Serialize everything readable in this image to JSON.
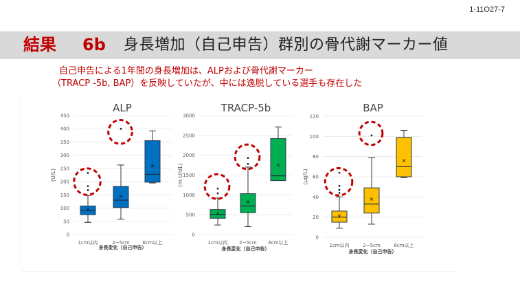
{
  "slide_id": "1-11O27-7",
  "header": {
    "result_label": "結果",
    "section_number": "6b",
    "title": "身長増加（自己申告）群別の骨代謝マーカー値"
  },
  "summary": {
    "line1": "自己申告による1年間の身長増加は、ALPおよび骨代謝マーカー",
    "line2": "（TRACP -5b, BAP）を反映していたが、中には逸脱している選手も存在した"
  },
  "colors": {
    "accent_red": "#c00000",
    "title_bar": "#d9d9d9",
    "alp": "#0070c0",
    "tracp": "#00b050",
    "bap": "#ffc000",
    "outlier_circle": "#c00000"
  },
  "chart_data": [
    {
      "type": "box",
      "title": "ALP",
      "xlabel": "身長変化（自己申告）",
      "ylabel": "(U/L)",
      "ylim": [
        0,
        450
      ],
      "yticks": [
        0,
        50,
        100,
        150,
        200,
        250,
        300,
        350,
        400,
        450
      ],
      "grid": true,
      "color": "#0070c0",
      "categories": [
        "1cm以内",
        "2~5cm",
        "6cm以上"
      ],
      "boxes": [
        {
          "min": 46,
          "q1": 75,
          "median": 90,
          "q3": 108,
          "max": 148,
          "mean": 95,
          "outliers": [
            168,
            183,
            233
          ]
        },
        {
          "min": 58,
          "q1": 102,
          "median": 130,
          "q3": 182,
          "max": 263,
          "mean": 145,
          "outliers": [
            400
          ]
        },
        {
          "min": 195,
          "q1": 198,
          "median": 228,
          "q3": 355,
          "max": 392,
          "mean": 260,
          "outliers": []
        }
      ],
      "highlight_circles": [
        {
          "category": 0,
          "center": 200,
          "radius_units": 50
        },
        {
          "category": 1,
          "center": 388,
          "radius_units": 45
        }
      ]
    },
    {
      "type": "box",
      "title": "TRACP-5b",
      "xlabel": "身長変化（自己申告）",
      "ylabel": "(m U/dL)",
      "ylim": [
        0,
        3000
      ],
      "yticks": [
        0,
        500,
        1000,
        1500,
        2000,
        2500,
        3000
      ],
      "grid": true,
      "color": "#00b050",
      "categories": [
        "1cm以内",
        "2~5cm",
        "6cm以上"
      ],
      "boxes": [
        {
          "min": 240,
          "q1": 410,
          "median": 510,
          "q3": 630,
          "max": 920,
          "mean": 530,
          "outliers": [
            1040,
            1160
          ]
        },
        {
          "min": 200,
          "q1": 550,
          "median": 720,
          "q3": 1030,
          "max": 1700,
          "mean": 820,
          "outliers": [
            1780,
            1930
          ]
        },
        {
          "min": 1360,
          "q1": 1360,
          "median": 1480,
          "q3": 2420,
          "max": 2710,
          "mean": 1750,
          "outliers": []
        }
      ],
      "highlight_circles": [
        {
          "category": 0,
          "center": 1210,
          "radius_units": 310
        },
        {
          "category": 1,
          "center": 1960,
          "radius_units": 310
        }
      ]
    },
    {
      "type": "box",
      "title": "BAP",
      "xlabel": "身長変化（自己申告）",
      "ylabel": "(μg/L)",
      "ylim": [
        0,
        120
      ],
      "yticks": [
        0,
        20,
        40,
        60,
        80,
        100,
        120
      ],
      "grid": true,
      "color": "#ffc000",
      "categories": [
        "1cm以内",
        "2~5cm",
        "6cm以上"
      ],
      "boxes": [
        {
          "min": 9,
          "q1": 15,
          "median": 20,
          "q3": 26,
          "max": 40,
          "mean": 21,
          "outliers": [
            44,
            47,
            51,
            64
          ]
        },
        {
          "min": 13,
          "q1": 24,
          "median": 33,
          "q3": 49,
          "max": 79,
          "mean": 38,
          "outliers": [
            101
          ]
        },
        {
          "min": 59,
          "q1": 60,
          "median": 70,
          "q3": 99,
          "max": 106,
          "mean": 76,
          "outliers": []
        }
      ],
      "highlight_circles": [
        {
          "category": 0,
          "center": 55,
          "radius_units": 13.5
        },
        {
          "category": 1,
          "center": 103,
          "radius_units": 11.5
        }
      ]
    }
  ]
}
